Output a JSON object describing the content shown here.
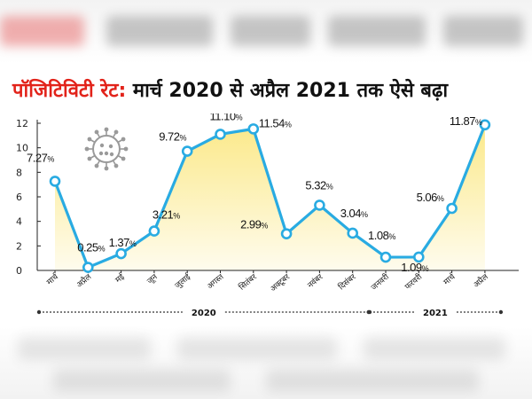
{
  "title": {
    "highlight": "पॉजिटिविटी रेट:",
    "rest": " मार्च 2020 से अप्रैल 2021 तक ऐसे बढ़ा"
  },
  "colors": {
    "line": "#29abe2",
    "fill": "#fbe98a",
    "title_highlight": "#e2231a",
    "virus": "#9a9a9a"
  },
  "chart_data": {
    "type": "line",
    "categories": [
      "मार्च",
      "अप्रैल",
      "मई",
      "जून",
      "जुलाई",
      "अगस्त",
      "सितंबर",
      "अक्टूबर",
      "नवंबर",
      "दिसंबर",
      "जनवरी",
      "फरवरी",
      "मार्च",
      "अप्रैल"
    ],
    "values": [
      7.27,
      0.25,
      1.37,
      3.21,
      9.72,
      11.1,
      11.54,
      2.99,
      5.32,
      3.04,
      1.08,
      1.09,
      5.06,
      11.87
    ],
    "value_labels": [
      "7.27",
      "0.25",
      "1.37",
      "3.21",
      "9.72",
      "11.10",
      "11.54",
      "2.99",
      "5.32",
      "3.04",
      "1.08",
      "1.09",
      "5.06",
      "11.87"
    ],
    "unit_suffix": "%",
    "ylim": [
      0,
      12
    ],
    "yticks": [
      "0",
      "2",
      "4",
      "6",
      "8",
      "10",
      "12"
    ],
    "grid": false,
    "area_fill": true,
    "year_groups": [
      {
        "label": "2020",
        "start": 0,
        "end": 9
      },
      {
        "label": "2021",
        "start": 10,
        "end": 13
      }
    ]
  }
}
